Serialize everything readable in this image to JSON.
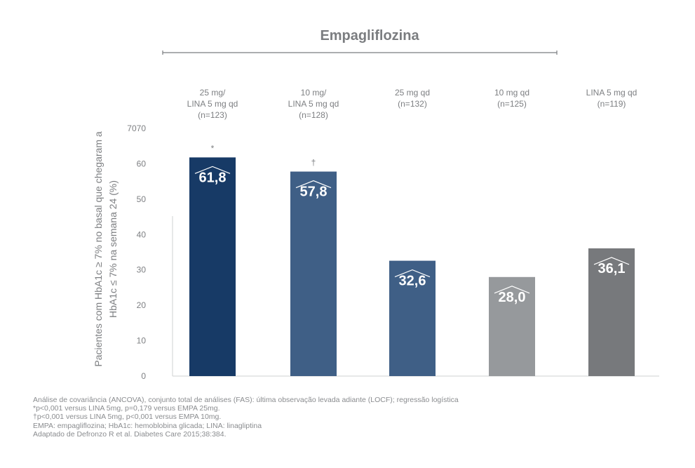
{
  "chart_data": {
    "type": "bar",
    "title": "Empagliflozina",
    "categories": [
      [
        "25 mg/",
        "LINA 5 mg qd",
        "(n=123)"
      ],
      [
        "10 mg/",
        "LINA 5 mg qd",
        "(n=128)"
      ],
      [
        "25 mg qd",
        "(n=132)"
      ],
      [
        "10 mg qd",
        "(n=125)"
      ],
      [
        "LINA 5 mg qd",
        "(n=119)"
      ]
    ],
    "values": [
      61.8,
      57.8,
      32.6,
      28.0,
      36.1
    ],
    "data_labels": [
      "61,8",
      "57,8",
      "32,6",
      "28,0",
      "36,1"
    ],
    "significance_markers": [
      "*",
      "†",
      "",
      "",
      ""
    ],
    "bar_colors": [
      "#173a66",
      "#3f5f86",
      "#3f5f86",
      "#96999c",
      "#77797c"
    ],
    "ylabel_lines": [
      "Pacientes com HbA1c ≥ 7% no basal que chegaram a",
      "HbA1c ≤ 7% na semana 24 (%)"
    ],
    "y_ticks": [
      0,
      10,
      20,
      30,
      40,
      50,
      60
    ],
    "y_tick_labels": [
      "0",
      "10",
      "20",
      "30",
      "40",
      "50",
      "60"
    ],
    "y_top_label": "7070",
    "ylim": [
      0,
      70
    ]
  },
  "footnotes": [
    "Análise de covariância (ANCOVA), conjunto total de análises (FAS): última observação levada adiante (LOCF); regressão logística",
    "*p<0,001 versus LINA 5mg, p=0,179 versus EMPA 25mg.",
    "†p<0,001 versus LINA 5mg, p<0,001 versus EMPA 10mg.",
    "EMPA: empagliflozina; HbA1c: hemoblobina glicada; LINA: linagliptina",
    "Adaptado de Defronzo R et al. Diabetes Care 2015;38:384."
  ]
}
